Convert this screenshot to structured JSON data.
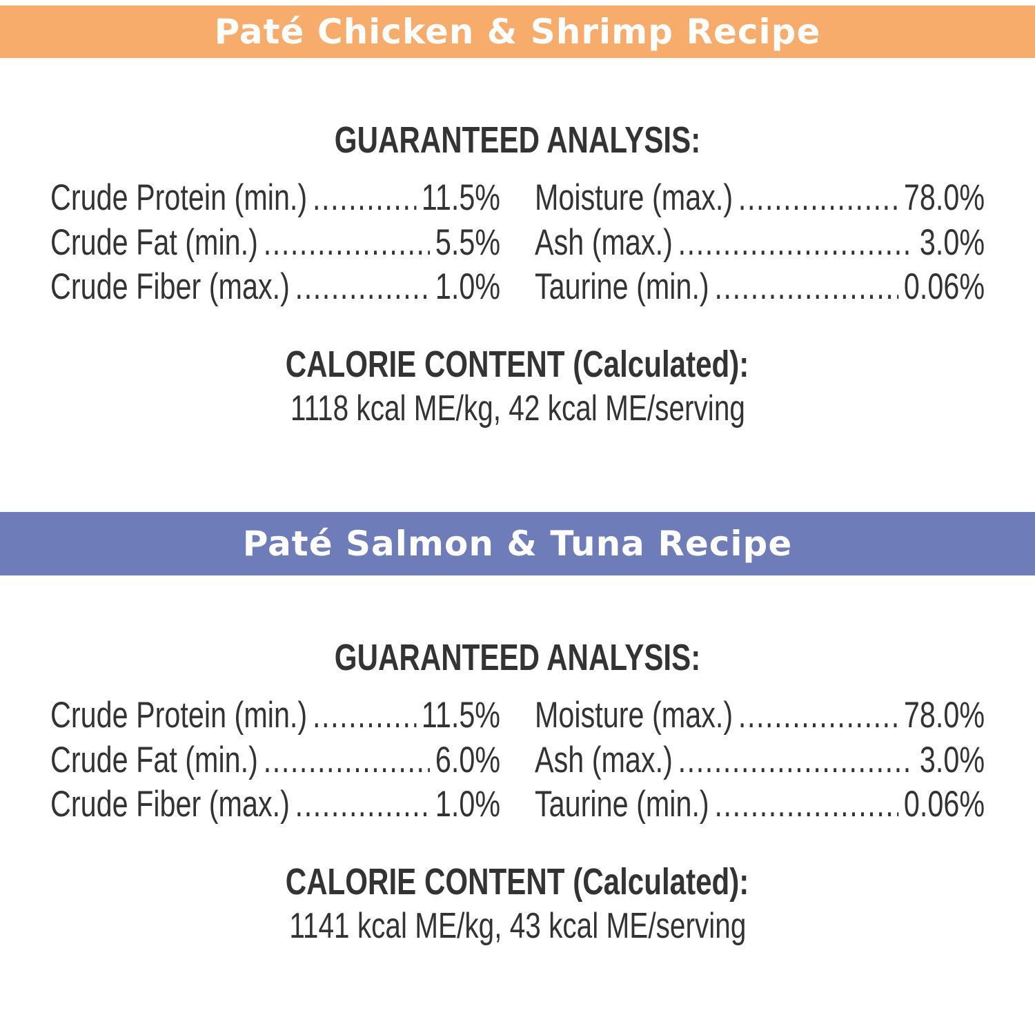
{
  "colors": {
    "section1_bar": "#F7AC6B",
    "section2_bar": "#6E7CBA",
    "text": "#333333"
  },
  "sections": [
    {
      "title": "Paté Chicken & Shrimp Recipe",
      "analysis_heading": "GUARANTEED ANALYSIS:",
      "left": [
        {
          "label": "Crude Protein (min.)",
          "value": "11.5%"
        },
        {
          "label": "Crude Fat (min.)",
          "value": "5.5%"
        },
        {
          "label": "Crude Fiber (max.)",
          "value": "1.0%"
        }
      ],
      "right": [
        {
          "label": "Moisture (max.)",
          "value": "78.0%"
        },
        {
          "label": "Ash (max.)",
          "value": "3.0%"
        },
        {
          "label": "Taurine (min.)",
          "value": "0.06%"
        }
      ],
      "calorie_heading": "CALORIE CONTENT (Calculated):",
      "calorie_text": "1118 kcal ME/kg, 42 kcal ME/serving"
    },
    {
      "title": "Paté Salmon & Tuna Recipe",
      "analysis_heading": "GUARANTEED ANALYSIS:",
      "left": [
        {
          "label": "Crude Protein (min.)",
          "value": "11.5%"
        },
        {
          "label": "Crude Fat (min.)",
          "value": "6.0%"
        },
        {
          "label": "Crude Fiber (max.)",
          "value": "1.0%"
        }
      ],
      "right": [
        {
          "label": "Moisture (max.)",
          "value": "78.0%"
        },
        {
          "label": "Ash (max.)",
          "value": "3.0%"
        },
        {
          "label": "Taurine (min.)",
          "value": "0.06%"
        }
      ],
      "calorie_heading": "CALORIE CONTENT (Calculated):",
      "calorie_text": "1141 kcal ME/kg, 43 kcal ME/serving"
    }
  ]
}
